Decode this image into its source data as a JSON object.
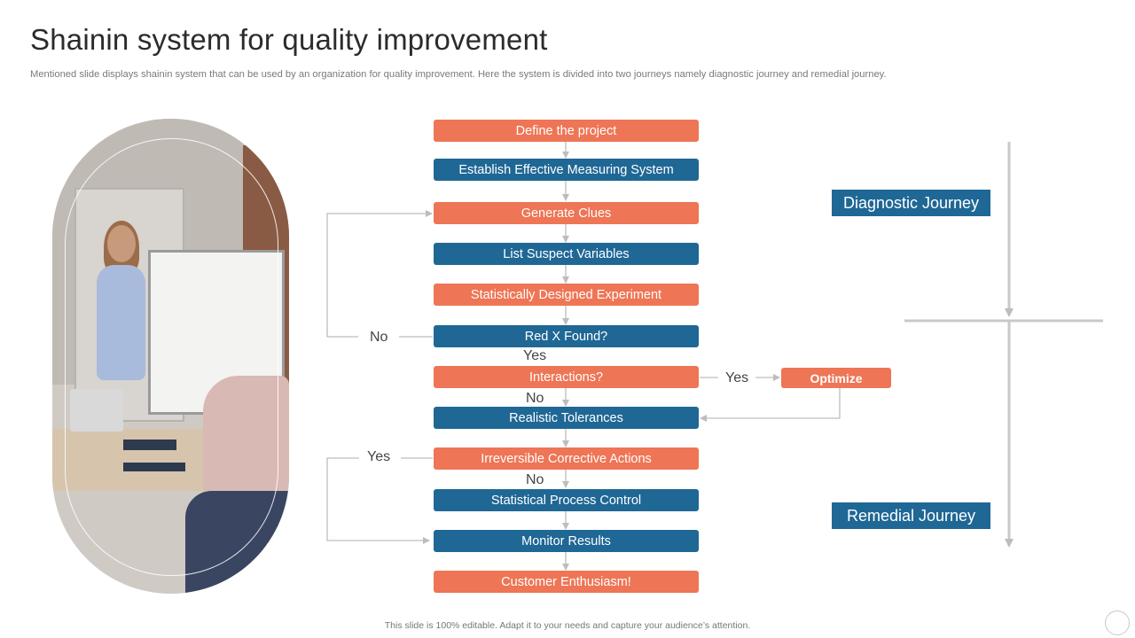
{
  "header": {
    "title": "Shainin system for quality improvement",
    "subtitle": "Mentioned slide displays shainin system that can be used by an organization for quality improvement. Here the system is divided into two journeys namely diagnostic journey and remedial journey."
  },
  "flow": {
    "steps": [
      {
        "label": "Define the project",
        "color": "#ee7555"
      },
      {
        "label": "Establish Effective Measuring System",
        "color": "#1f6795"
      },
      {
        "label": "Generate Clues",
        "color": "#ee7555"
      },
      {
        "label": "List Suspect Variables",
        "color": "#1f6795"
      },
      {
        "label": "Statistically Designed Experiment",
        "color": "#ee7555"
      },
      {
        "label": "Red X Found?",
        "color": "#1f6795"
      },
      {
        "label": "Interactions?",
        "color": "#ee7555"
      },
      {
        "label": "Realistic Tolerances",
        "color": "#1f6795"
      },
      {
        "label": "Irreversible Corrective Actions",
        "color": "#ee7555"
      },
      {
        "label": "Statistical Process Control",
        "color": "#1f6795"
      },
      {
        "label": "Monitor Results",
        "color": "#1f6795"
      },
      {
        "label": "Customer Enthusiasm!",
        "color": "#ee7555"
      }
    ],
    "optimize": "Optimize",
    "labels": {
      "no_loop": "No",
      "yes_after_redx": "Yes",
      "yes_interactions": "Yes",
      "no_after_interactions": "No",
      "yes_loop": "Yes",
      "no_after_irreversible": "No"
    }
  },
  "journeys": {
    "diagnostic": "Diagnostic Journey",
    "remedial": "Remedial Journey"
  },
  "footer": "This slide is 100% editable. Adapt it to your needs and capture your audience’s attention.",
  "colors": {
    "orange": "#ee7555",
    "blue": "#1f6795",
    "connector": "#bdbdbd"
  }
}
